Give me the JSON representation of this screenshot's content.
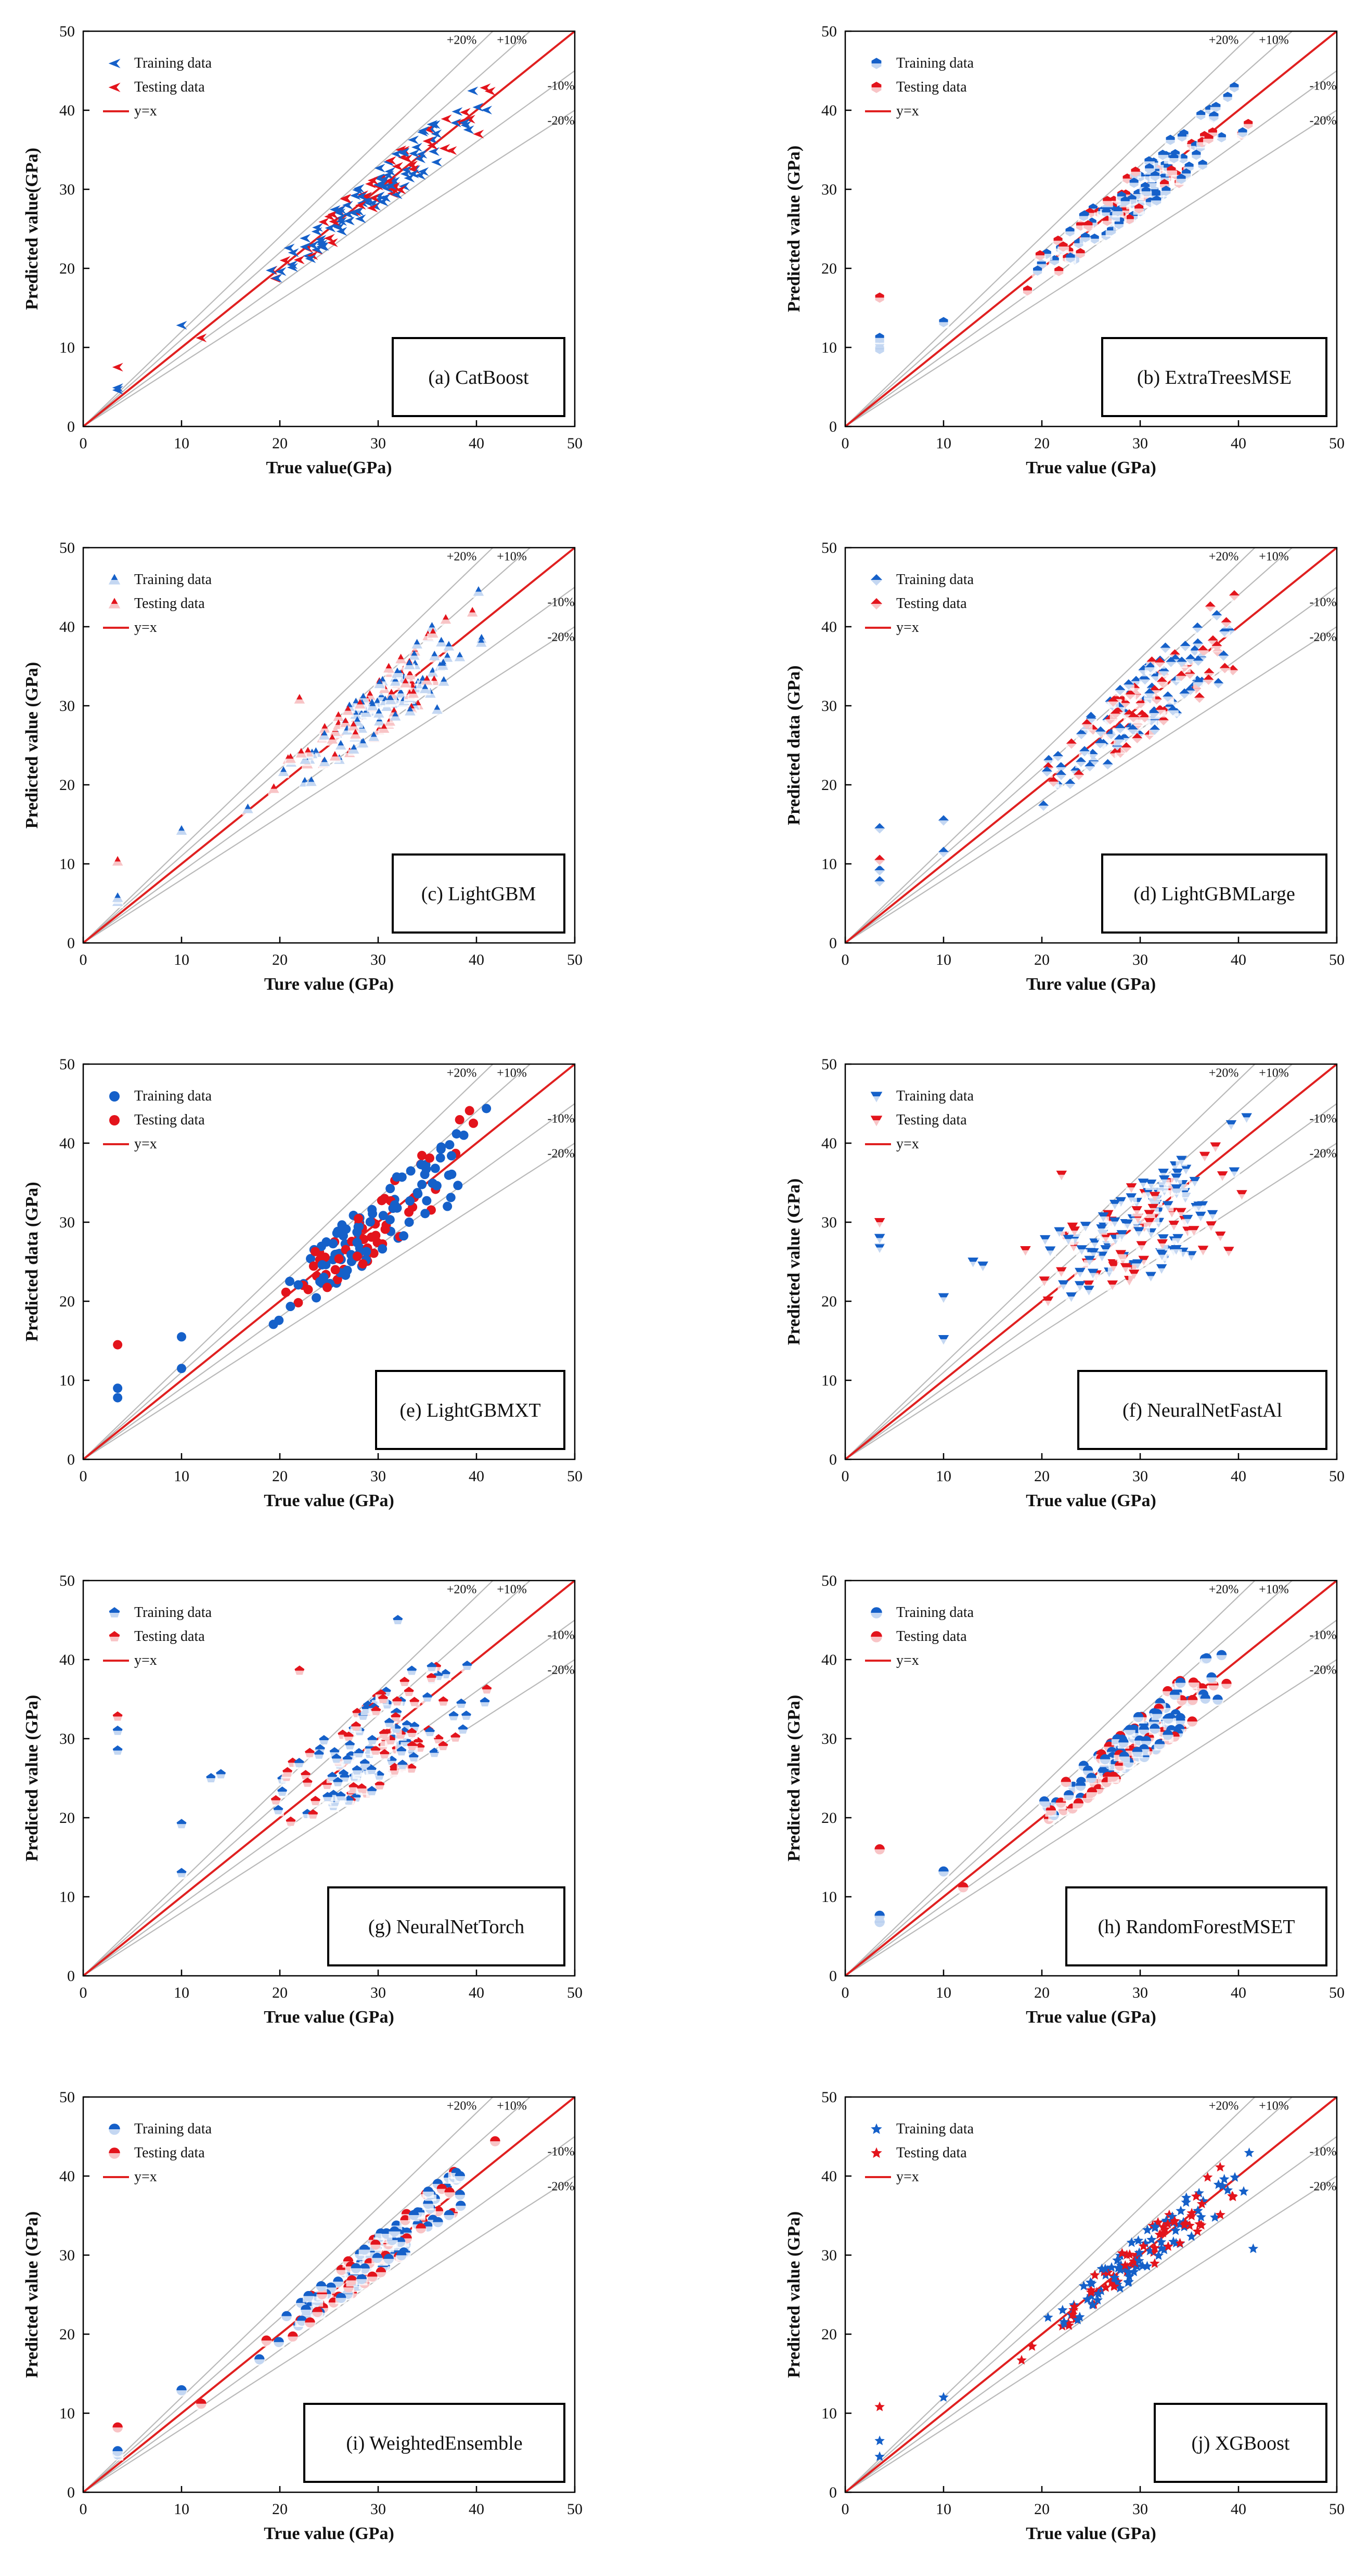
{
  "colors": {
    "training": "#1560c9",
    "testing": "#e3141c",
    "identity": "#e02020",
    "band": "#b9b9b9"
  },
  "band_labels": [
    "+20%",
    "+10%",
    "-10%",
    "-20%"
  ],
  "chart_data": [
    {
      "type": "scatter",
      "panel_label": "(a) CatBoost",
      "marker": "arrow-left",
      "xlabel": "True value(GPa)",
      "ylabel": "Predicted value(GPa)",
      "xlim": [
        0,
        50
      ],
      "ylim": [
        0,
        50
      ],
      "xticks": [
        "0",
        "10",
        "20",
        "30",
        "40",
        "50"
      ],
      "yticks": [
        "0",
        "10",
        "20",
        "30",
        "40",
        "50"
      ],
      "legend": [
        "Training data",
        "Testing data",
        "y=x"
      ],
      "spread": 0.06,
      "outliers": [
        {
          "x": 3.5,
          "y": 4.6,
          "s": "train"
        },
        {
          "x": 3.5,
          "y": 4.9,
          "s": "train"
        },
        {
          "x": 3.5,
          "y": 7.5,
          "s": "test"
        },
        {
          "x": 10,
          "y": 12.8,
          "s": "train"
        },
        {
          "x": 12,
          "y": 11.2,
          "s": "test"
        }
      ]
    },
    {
      "type": "scatter",
      "panel_label": "(b) ExtraTreesMSE",
      "marker": "hex",
      "xlabel": "True value (GPa)",
      "ylabel": "Predicted value (GPa)",
      "xlim": [
        0,
        50
      ],
      "ylim": [
        0,
        50
      ],
      "xticks": [
        "0",
        "10",
        "20",
        "30",
        "40",
        "50"
      ],
      "yticks": [
        "0",
        "10",
        "20",
        "30",
        "40",
        "50"
      ],
      "legend": [
        "Training data",
        "Testing data",
        "y=x"
      ],
      "spread": 0.07,
      "outliers": [
        {
          "x": 3.5,
          "y": 9.8,
          "s": "train"
        },
        {
          "x": 3.5,
          "y": 10.6,
          "s": "train"
        },
        {
          "x": 3.5,
          "y": 11.2,
          "s": "train"
        },
        {
          "x": 3.5,
          "y": 16.3,
          "s": "test"
        },
        {
          "x": 10,
          "y": 13.2,
          "s": "train"
        }
      ]
    },
    {
      "type": "scatter",
      "panel_label": "(c) LightGBM",
      "marker": "triangle-up",
      "xlabel": "Ture value (GPa)",
      "ylabel": "Predicted value (GPa)",
      "xlim": [
        0,
        50
      ],
      "ylim": [
        0,
        50
      ],
      "xticks": [
        "0",
        "10",
        "20",
        "30",
        "40",
        "50"
      ],
      "yticks": [
        "0",
        "10",
        "20",
        "30",
        "40",
        "50"
      ],
      "legend": [
        "Training data",
        "Testing data",
        "y=x"
      ],
      "spread": 0.09,
      "outliers": [
        {
          "x": 3.5,
          "y": 5.2,
          "s": "train"
        },
        {
          "x": 3.5,
          "y": 5.7,
          "s": "train"
        },
        {
          "x": 3.5,
          "y": 10.3,
          "s": "test"
        },
        {
          "x": 10,
          "y": 14.2,
          "s": "train"
        },
        {
          "x": 22,
          "y": 30.8,
          "s": "test"
        },
        {
          "x": 36,
          "y": 29.5,
          "s": "train"
        }
      ]
    },
    {
      "type": "scatter",
      "panel_label": "(d) LightGBMLarge",
      "marker": "diamond-half",
      "xlabel": "Ture value (GPa)",
      "ylabel": "Predicted data (GPa)",
      "xlim": [
        0,
        50
      ],
      "ylim": [
        0,
        50
      ],
      "xticks": [
        "0",
        "10",
        "20",
        "30",
        "40",
        "50"
      ],
      "yticks": [
        "0",
        "10",
        "20",
        "30",
        "40",
        "50"
      ],
      "legend": [
        "Training data",
        "Testing data",
        "y=x"
      ],
      "spread": 0.11,
      "outliers": [
        {
          "x": 3.5,
          "y": 7.8,
          "s": "train"
        },
        {
          "x": 3.5,
          "y": 9.2,
          "s": "train"
        },
        {
          "x": 3.5,
          "y": 14.5,
          "s": "train"
        },
        {
          "x": 3.5,
          "y": 10.5,
          "s": "test"
        },
        {
          "x": 10,
          "y": 15.5,
          "s": "train"
        },
        {
          "x": 10,
          "y": 11.5,
          "s": "train"
        }
      ]
    },
    {
      "type": "scatter",
      "panel_label": "(e) LightGBMXT",
      "marker": "circle",
      "xlabel": "True value (GPa)",
      "ylabel": "Predicted data (GPa)",
      "xlim": [
        0,
        50
      ],
      "ylim": [
        0,
        50
      ],
      "xticks": [
        "0",
        "10",
        "20",
        "30",
        "40",
        "50"
      ],
      "yticks": [
        "0",
        "10",
        "20",
        "30",
        "40",
        "50"
      ],
      "legend": [
        "Training data",
        "Testing data",
        "y=x"
      ],
      "spread": 0.1,
      "outliers": [
        {
          "x": 3.5,
          "y": 7.8,
          "s": "train"
        },
        {
          "x": 3.5,
          "y": 9.0,
          "s": "train"
        },
        {
          "x": 3.5,
          "y": 14.5,
          "s": "test"
        },
        {
          "x": 10,
          "y": 15.5,
          "s": "train"
        },
        {
          "x": 10,
          "y": 11.5,
          "s": "train"
        }
      ]
    },
    {
      "type": "scatter",
      "panel_label": "(f) NeuralNetFastAl",
      "marker": "triangle-down",
      "xlabel": "True value (GPa)",
      "ylabel": "Predicted value (GPa)",
      "xlim": [
        0,
        50
      ],
      "ylim": [
        0,
        50
      ],
      "xticks": [
        "0",
        "10",
        "20",
        "30",
        "40",
        "50"
      ],
      "yticks": [
        "0",
        "10",
        "20",
        "30",
        "40",
        "50"
      ],
      "legend": [
        "Training data",
        "Testing data",
        "y=x"
      ],
      "spread": 0.15,
      "compress": 0.55,
      "outliers": [
        {
          "x": 3.5,
          "y": 26.8,
          "s": "train"
        },
        {
          "x": 3.5,
          "y": 28.0,
          "s": "train"
        },
        {
          "x": 3.5,
          "y": 30.0,
          "s": "test"
        },
        {
          "x": 10,
          "y": 20.5,
          "s": "train"
        },
        {
          "x": 10,
          "y": 15.2,
          "s": "train"
        },
        {
          "x": 13,
          "y": 25,
          "s": "train"
        },
        {
          "x": 14,
          "y": 24.5,
          "s": "train"
        },
        {
          "x": 22,
          "y": 36,
          "s": "test"
        }
      ]
    },
    {
      "type": "scatter",
      "panel_label": "(g) NeuralNetTorch",
      "marker": "pentagon",
      "xlabel": "True value (GPa)",
      "ylabel": "Predicted value (GPa)",
      "xlim": [
        0,
        50
      ],
      "ylim": [
        0,
        50
      ],
      "xticks": [
        "0",
        "10",
        "20",
        "30",
        "40",
        "50"
      ],
      "yticks": [
        "0",
        "10",
        "20",
        "30",
        "40",
        "50"
      ],
      "legend": [
        "Training data",
        "Testing data",
        "y=x"
      ],
      "spread": 0.14,
      "compress": 0.75,
      "outliers": [
        {
          "x": 3.5,
          "y": 28.5,
          "s": "train"
        },
        {
          "x": 3.5,
          "y": 31.0,
          "s": "train"
        },
        {
          "x": 3.5,
          "y": 32.8,
          "s": "test"
        },
        {
          "x": 10,
          "y": 19.2,
          "s": "train"
        },
        {
          "x": 10,
          "y": 13,
          "s": "train"
        },
        {
          "x": 13,
          "y": 25,
          "s": "train"
        },
        {
          "x": 14,
          "y": 25.5,
          "s": "train"
        },
        {
          "x": 22,
          "y": 38.6,
          "s": "test"
        },
        {
          "x": 32,
          "y": 45,
          "s": "train"
        }
      ]
    },
    {
      "type": "scatter",
      "panel_label": "(h) RandomForestMSET",
      "marker": "circle-half",
      "xlabel": "True value (GPa)",
      "ylabel": "Predicted value (GPa)",
      "xlim": [
        0,
        50
      ],
      "ylim": [
        0,
        50
      ],
      "xticks": [
        "0",
        "10",
        "20",
        "30",
        "40",
        "50"
      ],
      "yticks": [
        "0",
        "10",
        "20",
        "30",
        "40",
        "50"
      ],
      "legend": [
        "Training data",
        "Testing data",
        "y=x"
      ],
      "spread": 0.07,
      "outliers": [
        {
          "x": 3.5,
          "y": 6.8,
          "s": "train"
        },
        {
          "x": 3.5,
          "y": 7.6,
          "s": "train"
        },
        {
          "x": 3.5,
          "y": 16,
          "s": "test"
        },
        {
          "x": 10,
          "y": 13.2,
          "s": "train"
        },
        {
          "x": 12,
          "y": 11.2,
          "s": "test"
        }
      ]
    },
    {
      "type": "scatter",
      "panel_label": "(i) WeightedEnsemble",
      "marker": "circle-half",
      "xlabel": "True value (GPa)",
      "ylabel": "Predicted value (GPa)",
      "xlim": [
        0,
        50
      ],
      "ylim": [
        0,
        50
      ],
      "xticks": [
        "0",
        "10",
        "20",
        "30",
        "40",
        "50"
      ],
      "yticks": [
        "0",
        "10",
        "20",
        "30",
        "40",
        "50"
      ],
      "legend": [
        "Training data",
        "Testing data",
        "y=x"
      ],
      "spread": 0.06,
      "outliers": [
        {
          "x": 3.5,
          "y": 4.8,
          "s": "train"
        },
        {
          "x": 3.5,
          "y": 5.2,
          "s": "train"
        },
        {
          "x": 3.5,
          "y": 8.2,
          "s": "test"
        },
        {
          "x": 10,
          "y": 12.9,
          "s": "train"
        },
        {
          "x": 12,
          "y": 11.2,
          "s": "test"
        }
      ]
    },
    {
      "type": "scatter",
      "panel_label": "(j) XGBoost",
      "marker": "star",
      "xlabel": "True value (GPa)",
      "ylabel": "Predicted value (GPa)",
      "xlim": [
        0,
        50
      ],
      "ylim": [
        0,
        50
      ],
      "xticks": [
        "0",
        "10",
        "20",
        "30",
        "40",
        "50"
      ],
      "yticks": [
        "0",
        "10",
        "20",
        "30",
        "40",
        "50"
      ],
      "legend": [
        "Training data",
        "Testing data",
        "y=x"
      ],
      "spread": 0.06,
      "outliers": [
        {
          "x": 3.5,
          "y": 4.5,
          "s": "train"
        },
        {
          "x": 3.5,
          "y": 6.5,
          "s": "train"
        },
        {
          "x": 3.5,
          "y": 10.8,
          "s": "test"
        },
        {
          "x": 10,
          "y": 12,
          "s": "train"
        },
        {
          "x": 41.5,
          "y": 30.8,
          "s": "train"
        }
      ]
    }
  ]
}
